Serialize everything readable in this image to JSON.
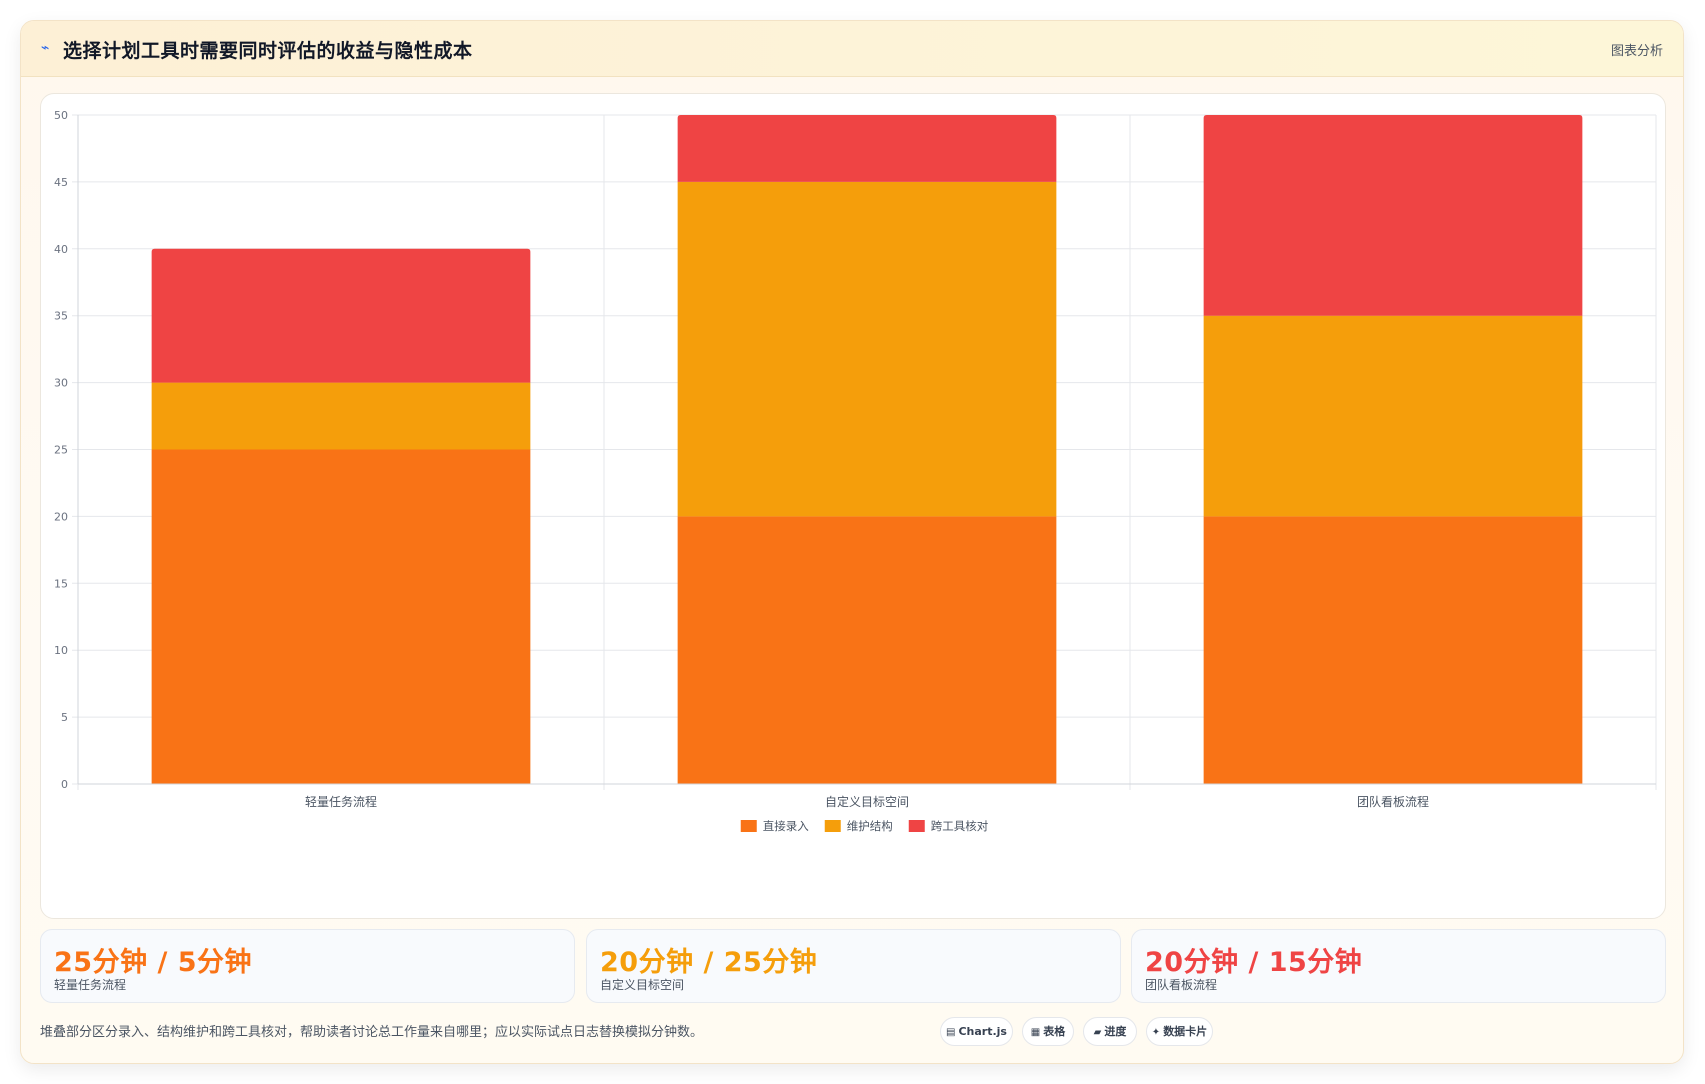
{
  "header": {
    "title": "选择计划工具时需要同时评估的收益与隐性成本",
    "tag": "图表分析",
    "icon": "trend-line-icon"
  },
  "colors": {
    "orange": "#f97316",
    "amber": "#f59e0b",
    "red": "#ef4444"
  },
  "chart_data": {
    "type": "bar",
    "stacked": true,
    "categories": [
      "轻量任务流程",
      "自定义目标空间",
      "团队看板流程"
    ],
    "series": [
      {
        "name": "直接录入",
        "values": [
          25,
          20,
          20
        ],
        "color": "#f97316"
      },
      {
        "name": "维护结构",
        "values": [
          5,
          25,
          15
        ],
        "color": "#f59e0b"
      },
      {
        "name": "跨工具核对",
        "values": [
          10,
          5,
          15
        ],
        "color": "#ef4444"
      }
    ],
    "ylim": [
      0,
      50
    ],
    "yticks": [
      0,
      5,
      10,
      15,
      20,
      25,
      30,
      35,
      40,
      45,
      50
    ],
    "grid": true,
    "legend": "bottom"
  },
  "stats": [
    {
      "value": "25分钟 / 5分钟",
      "label": "轻量任务流程",
      "color": "#f97316"
    },
    {
      "value": "20分钟 / 25分钟",
      "label": "自定义目标空间",
      "color": "#f59e0b"
    },
    {
      "value": "20分钟 / 15分钟",
      "label": "团队看板流程",
      "color": "#ef4444"
    }
  ],
  "footnote": "堆叠部分区分录入、结构维护和跨工具核对，帮助读者讨论总工作量来自哪里；应以实际试点日志替换模拟分钟数。",
  "chips": [
    {
      "icon": "chart-icon",
      "glyph": "▤",
      "label": "Chart.js"
    },
    {
      "icon": "table-icon",
      "glyph": "▦",
      "label": "表格"
    },
    {
      "icon": "progress-icon",
      "glyph": "▰",
      "label": "进度"
    },
    {
      "icon": "data-card-icon",
      "glyph": "✦",
      "label": "数据卡片"
    }
  ]
}
